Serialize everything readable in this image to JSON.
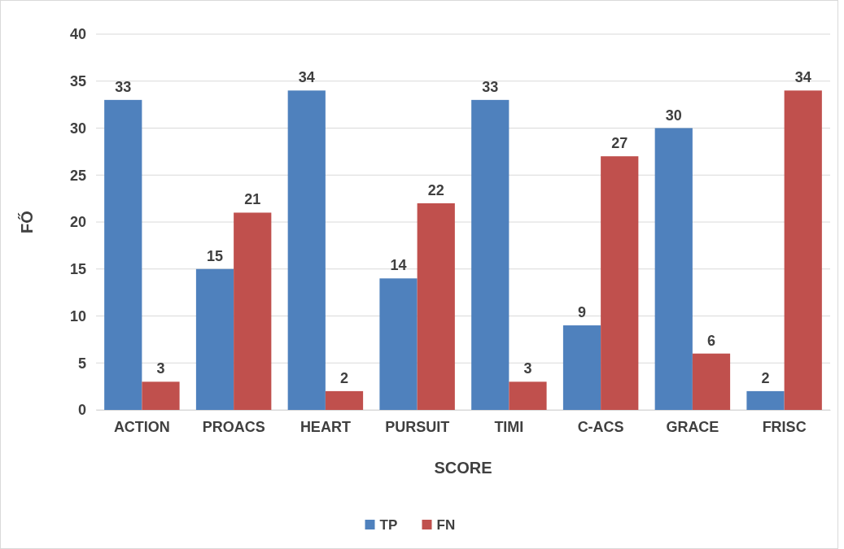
{
  "chart_data": {
    "type": "bar",
    "xlabel": "SCORE",
    "ylabel": "FŐ",
    "categories": [
      "ACTION",
      "PROACS",
      "HEART",
      "PURSUIT",
      "TIMI",
      "C-ACS",
      "GRACE",
      "FRISC"
    ],
    "series": [
      {
        "name": "TP",
        "color": "#4f81bd",
        "values": [
          33,
          15,
          34,
          14,
          33,
          9,
          30,
          2
        ]
      },
      {
        "name": "FN",
        "color": "#c0504d",
        "values": [
          3,
          21,
          2,
          22,
          3,
          27,
          6,
          34
        ]
      }
    ],
    "ylim": [
      0,
      40
    ],
    "yticks": [
      0,
      5,
      10,
      15,
      20,
      25,
      30,
      35,
      40
    ],
    "grid": "y",
    "legend": "bottom",
    "data_labels": true
  }
}
